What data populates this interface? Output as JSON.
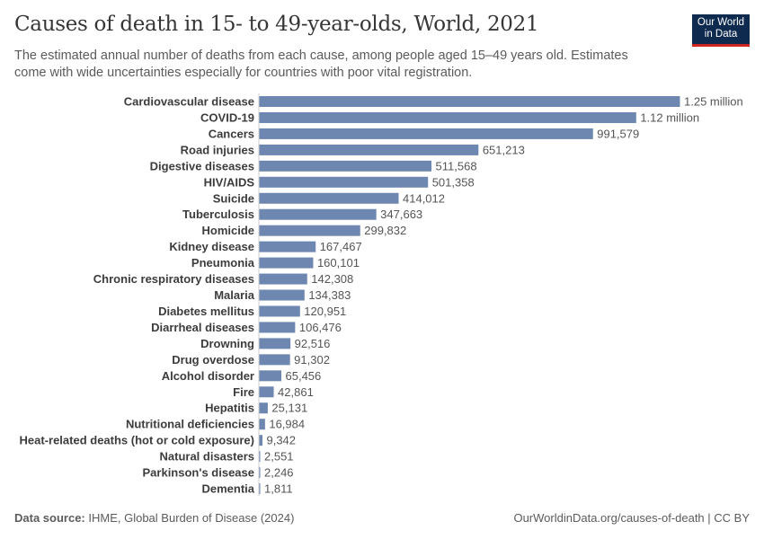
{
  "header": {
    "title": "Causes of death in 15- to 49-year-olds, World, 2021",
    "subtitle": "The estimated annual number of deaths from each cause, among people aged 15–49 years old. Estimates come with wide uncertainties especially for countries with poor vital registration.",
    "logo_text": "Our World in Data"
  },
  "footer": {
    "source_label": "Data source:",
    "source": "IHME, Global Burden of Disease (2024)",
    "credit": "OurWorldinData.org/causes-of-death | CC BY"
  },
  "colors": {
    "bar": "#6d87b0",
    "logo_bg": "#0f2a4f",
    "logo_accent": "#ce261e"
  },
  "chart_data": {
    "type": "bar",
    "orientation": "horizontal",
    "title": "Causes of death in 15- to 49-year-olds, World, 2021",
    "categories": [
      "Cardiovascular disease",
      "COVID-19",
      "Cancers",
      "Road injuries",
      "Digestive diseases",
      "HIV/AIDS",
      "Suicide",
      "Tuberculosis",
      "Homicide",
      "Kidney disease",
      "Pneumonia",
      "Chronic respiratory diseases",
      "Malaria",
      "Diabetes mellitus",
      "Diarrheal diseases",
      "Drowning",
      "Drug overdose",
      "Alcohol disorder",
      "Fire",
      "Hepatitis",
      "Nutritional deficiencies",
      "Heat-related deaths (hot or cold exposure)",
      "Natural disasters",
      "Parkinson's disease",
      "Dementia"
    ],
    "values": [
      1250000,
      1120000,
      991579,
      651213,
      511568,
      501358,
      414012,
      347663,
      299832,
      167467,
      160101,
      142308,
      134383,
      120951,
      106476,
      92516,
      91302,
      65456,
      42861,
      25131,
      16984,
      9342,
      2551,
      2246,
      1811
    ],
    "value_labels": [
      "1.25 million",
      "1.12 million",
      "991,579",
      "651,213",
      "511,568",
      "501,358",
      "414,012",
      "347,663",
      "299,832",
      "167,467",
      "160,101",
      "142,308",
      "134,383",
      "120,951",
      "106,476",
      "92,516",
      "91,302",
      "65,456",
      "42,861",
      "25,131",
      "16,984",
      "9,342",
      "2,551",
      "2,246",
      "1,811"
    ],
    "xlim": [
      0,
      1250000
    ],
    "grid": false
  }
}
